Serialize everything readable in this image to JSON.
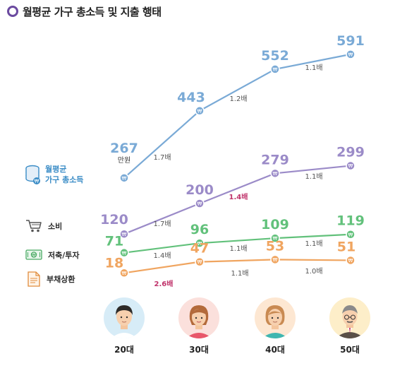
{
  "title": "월평균 가구 총소득 및 지출 행태",
  "chart_data": {
    "type": "line",
    "categories": [
      "20대",
      "30대",
      "40대",
      "50대"
    ],
    "series": [
      {
        "name": "월평균 가구 총소득",
        "color": "#7aaad6",
        "values": [
          267,
          443,
          552,
          591
        ],
        "value_unit_label": "만원",
        "growth": [
          "1.7배",
          "1.2배",
          "1.1배"
        ]
      },
      {
        "name": "소비",
        "color": "#9b8bc8",
        "values": [
          120,
          200,
          279,
          299
        ],
        "growth": [
          "1.7배",
          "1.4배",
          "1.1배"
        ]
      },
      {
        "name": "저축/투자",
        "color": "#62c17b",
        "values": [
          71,
          96,
          109,
          119
        ],
        "growth": [
          "1.4배",
          "1.1배",
          "1.1배"
        ]
      },
      {
        "name": "부채상환",
        "color": "#f0a560",
        "values": [
          18,
          47,
          53,
          51
        ],
        "growth": [
          "2.6배",
          "1.1배",
          "1.0배"
        ]
      }
    ],
    "highlight_color": "#c0336b"
  },
  "legend": [
    {
      "label_lines": [
        "월평균",
        "가구 총소득"
      ],
      "icon": "coin-stack-icon"
    },
    {
      "label_lines": [
        "소비"
      ],
      "icon": "shopping-cart-icon"
    },
    {
      "label_lines": [
        "저축/투자"
      ],
      "icon": "banknote-icon"
    },
    {
      "label_lines": [
        "부채상환"
      ],
      "icon": "debt-document-icon"
    }
  ],
  "ages": [
    "20대",
    "30대",
    "40대",
    "50대"
  ]
}
